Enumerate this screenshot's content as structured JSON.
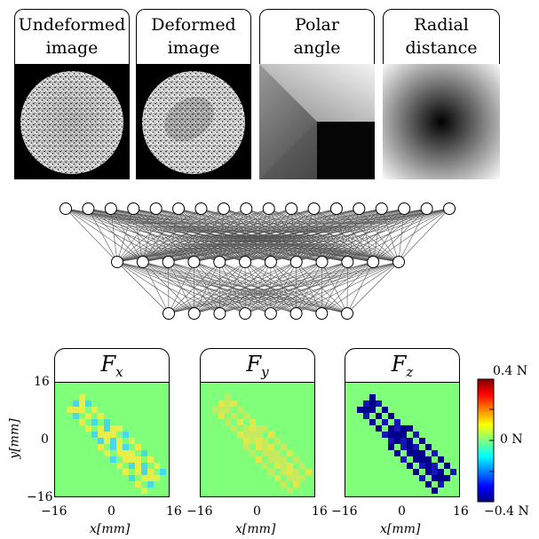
{
  "inputs": {
    "tabs": [
      {
        "line1": "Undeformed",
        "line2": "image"
      },
      {
        "line1": "Deformed",
        "line2": "image"
      },
      {
        "line1": "Polar",
        "line2": "angle"
      },
      {
        "line1": "Radial",
        "line2": "distance"
      }
    ]
  },
  "network": {
    "layers": [
      18,
      12,
      8
    ]
  },
  "outputs": {
    "panels": [
      {
        "symbol": "F",
        "sub": "x",
        "colors": {
          "stripe_main": "#e6ef4a",
          "stripe_alt": "#49d8e6"
        }
      },
      {
        "symbol": "F",
        "sub": "y",
        "colors": {
          "stripe_main": "#c6ea5e",
          "stripe_alt": "#e3e84a"
        }
      },
      {
        "symbol": "F",
        "sub": "z",
        "colors": {
          "stripe_main": "#00008f",
          "stripe_alt": "#1515b8"
        }
      }
    ],
    "y_axis": {
      "ticks": [
        "16",
        "0",
        "−16"
      ],
      "label": "y[mm]"
    },
    "x_axis": {
      "ticks": [
        "−16",
        "0",
        "16"
      ],
      "label": "x[mm]"
    },
    "colorbar": {
      "top_label": "0.4 N",
      "mid_label": "0 N",
      "bottom_label": "−0.4 N"
    },
    "background_color": "#7fff7a"
  }
}
